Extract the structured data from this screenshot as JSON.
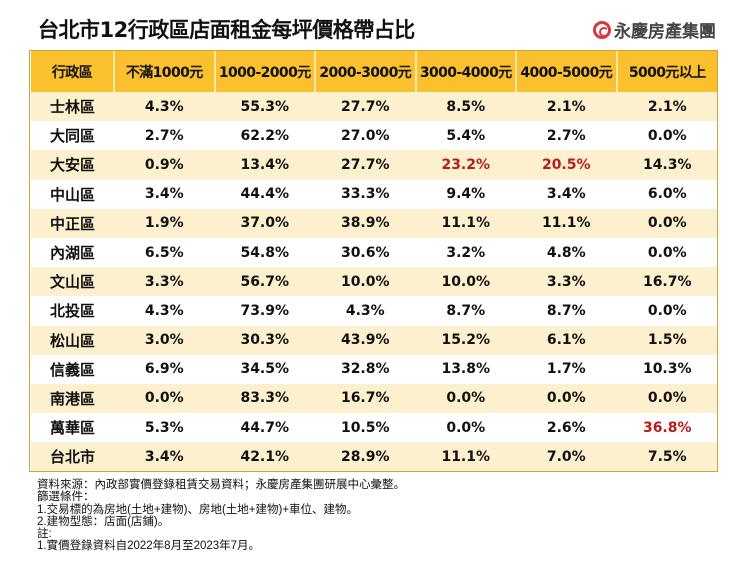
{
  "title": "台北市12行政區店面租金每坪價格帶占比",
  "brand": {
    "name": "永慶房產集團",
    "accent": "#d9363e"
  },
  "colors": {
    "header": "#fbc02d",
    "stripe": "#fdf0cf",
    "highlight": "#b71c1c"
  },
  "table": {
    "headers": [
      "行政區",
      "不滿1000元",
      "1000-2000元",
      "2000-3000元",
      "3000-4000元",
      "4000-5000元",
      "5000元以上"
    ],
    "rows": [
      [
        "士林區",
        "4.3%",
        "55.3%",
        "27.7%",
        "8.5%",
        "2.1%",
        "2.1%"
      ],
      [
        "大同區",
        "2.7%",
        "62.2%",
        "27.0%",
        "5.4%",
        "2.7%",
        "0.0%"
      ],
      [
        "大安區",
        "0.9%",
        "13.4%",
        "27.7%",
        "23.2%",
        "20.5%",
        "14.3%"
      ],
      [
        "中山區",
        "3.4%",
        "44.4%",
        "33.3%",
        "9.4%",
        "3.4%",
        "6.0%"
      ],
      [
        "中正區",
        "1.9%",
        "37.0%",
        "38.9%",
        "11.1%",
        "11.1%",
        "0.0%"
      ],
      [
        "內湖區",
        "6.5%",
        "54.8%",
        "30.6%",
        "3.2%",
        "4.8%",
        "0.0%"
      ],
      [
        "文山區",
        "3.3%",
        "56.7%",
        "10.0%",
        "10.0%",
        "3.3%",
        "16.7%"
      ],
      [
        "北投區",
        "4.3%",
        "73.9%",
        "4.3%",
        "8.7%",
        "8.7%",
        "0.0%"
      ],
      [
        "松山區",
        "3.0%",
        "30.3%",
        "43.9%",
        "15.2%",
        "6.1%",
        "1.5%"
      ],
      [
        "信義區",
        "6.9%",
        "34.5%",
        "32.8%",
        "13.8%",
        "1.7%",
        "10.3%"
      ],
      [
        "南港區",
        "0.0%",
        "83.3%",
        "16.7%",
        "0.0%",
        "0.0%",
        "0.0%"
      ],
      [
        "萬華區",
        "5.3%",
        "44.7%",
        "10.5%",
        "0.0%",
        "2.6%",
        "36.8%"
      ],
      [
        "台北市",
        "3.4%",
        "42.1%",
        "28.9%",
        "11.1%",
        "7.0%",
        "7.5%"
      ]
    ],
    "highlighted_cells": [
      [
        2,
        4
      ],
      [
        2,
        5
      ],
      [
        11,
        6
      ]
    ]
  },
  "notes": [
    "資料來源：內政部實價登錄租賃交易資料；永慶房產集團研展中心彙整。",
    "篩選條件：",
    "1.交易標的為房地(土地+建物)、房地(土地+建物)+車位、建物。",
    "2.建物型態：店面(店鋪)。",
    "註:",
    "1.實價登錄資料自2022年8月至2023年7月。"
  ]
}
